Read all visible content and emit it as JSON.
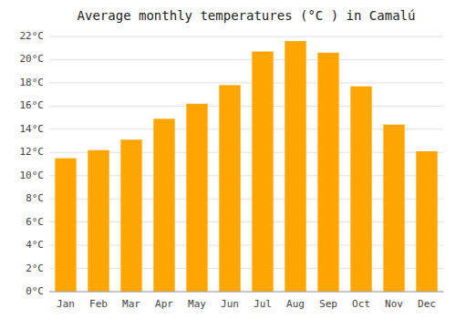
{
  "chart_data": {
    "type": "bar",
    "title": "Average monthly temperatures (°C ) in Camalú",
    "categories": [
      "Jan",
      "Feb",
      "Mar",
      "Apr",
      "May",
      "Jun",
      "Jul",
      "Aug",
      "Sep",
      "Oct",
      "Nov",
      "Dec"
    ],
    "values": [
      11.5,
      12.2,
      13.1,
      14.9,
      16.2,
      17.8,
      20.7,
      21.6,
      20.6,
      17.7,
      14.4,
      12.1
    ],
    "color": "#FFA500",
    "ylim": [
      0,
      22
    ],
    "yticks": [
      {
        "value": 0,
        "label": "0°C"
      },
      {
        "value": 2,
        "label": "2°C"
      },
      {
        "value": 4,
        "label": "4°C"
      },
      {
        "value": 6,
        "label": "6°C"
      },
      {
        "value": 8,
        "label": "8°C"
      },
      {
        "value": 10,
        "label": "10°C"
      },
      {
        "value": 12,
        "label": "12°C"
      },
      {
        "value": 14,
        "label": "14°C"
      },
      {
        "value": 16,
        "label": "16°C"
      },
      {
        "value": 18,
        "label": "18°C"
      },
      {
        "value": 20,
        "label": "20°C"
      },
      {
        "value": 22,
        "label": "22°C"
      }
    ],
    "grid": true
  }
}
